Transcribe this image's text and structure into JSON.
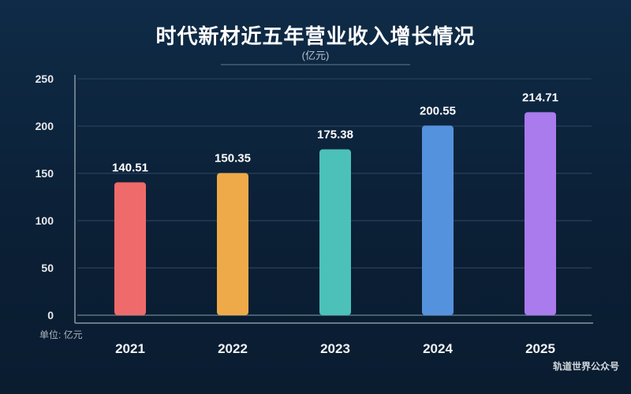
{
  "chart_data": {
    "type": "bar",
    "title": "时代新材近五年营业收入增长情况",
    "subtitle": "(亿元)",
    "unit_label": "单位: 亿元",
    "categories": [
      "2021",
      "2022",
      "2023",
      "2024",
      "2025"
    ],
    "values": [
      140.51,
      150.35,
      175.38,
      200.55,
      214.71
    ],
    "value_labels": [
      "140.51",
      "150.35",
      "175.38",
      "200.55",
      "214.71"
    ],
    "colors": [
      "#ef6a6a",
      "#eeaa48",
      "#4bc1ba",
      "#5592de",
      "#a97bec"
    ],
    "ylim": [
      0,
      250
    ],
    "yticks": [
      0,
      50,
      100,
      150,
      200,
      250
    ],
    "ytick_labels": [
      "0",
      "50",
      "100",
      "150",
      "200",
      "250"
    ],
    "grid": true,
    "xlabel": "",
    "ylabel": ""
  },
  "watermark": "轨道世界公众号"
}
